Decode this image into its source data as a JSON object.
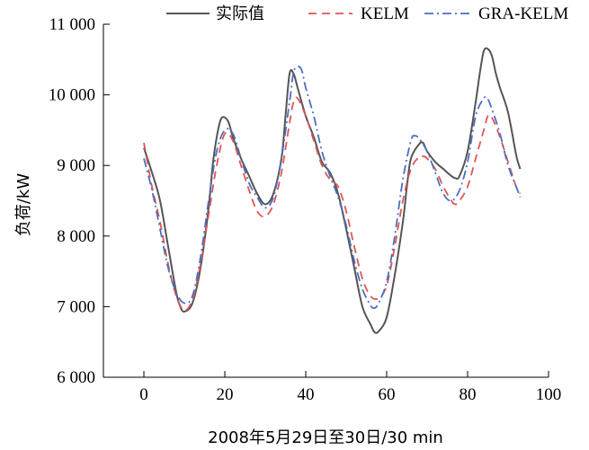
{
  "chart_data": {
    "type": "line",
    "xlabel": "2008年5月29日至30日/30 min",
    "ylabel": "负荷/kW",
    "xlim": [
      -10,
      100
    ],
    "ylim": [
      6000,
      11000
    ],
    "x_ticks": [
      0,
      20,
      40,
      60,
      80,
      100
    ],
    "y_ticks": [
      6000,
      7000,
      8000,
      9000,
      10000,
      11000
    ],
    "x_tick_labels": [
      "0",
      "20",
      "40",
      "60",
      "80",
      "100"
    ],
    "y_tick_labels": [
      "6 000",
      "7 000",
      "8 000",
      "9 000",
      "10 000",
      "11 000"
    ],
    "grid": false,
    "legend_position": "top",
    "series": [
      {
        "name": "实际值",
        "color": "#555555",
        "style": "solid",
        "points": [
          [
            0,
            9250
          ],
          [
            2,
            8900
          ],
          [
            4,
            8500
          ],
          [
            6,
            7850
          ],
          [
            8,
            7200
          ],
          [
            9,
            7000
          ],
          [
            10,
            6930
          ],
          [
            12,
            7050
          ],
          [
            14,
            7550
          ],
          [
            16,
            8400
          ],
          [
            17,
            9000
          ],
          [
            18,
            9400
          ],
          [
            19,
            9650
          ],
          [
            20,
            9680
          ],
          [
            21,
            9600
          ],
          [
            22,
            9400
          ],
          [
            24,
            9100
          ],
          [
            26,
            8850
          ],
          [
            28,
            8600
          ],
          [
            30,
            8450
          ],
          [
            32,
            8600
          ],
          [
            34,
            9100
          ],
          [
            35,
            9700
          ],
          [
            36,
            10300
          ],
          [
            37,
            10300
          ],
          [
            38,
            10100
          ],
          [
            40,
            9700
          ],
          [
            42,
            9400
          ],
          [
            44,
            9050
          ],
          [
            46,
            8900
          ],
          [
            48,
            8600
          ],
          [
            50,
            8100
          ],
          [
            52,
            7550
          ],
          [
            54,
            7000
          ],
          [
            56,
            6750
          ],
          [
            57,
            6640
          ],
          [
            58,
            6650
          ],
          [
            60,
            6850
          ],
          [
            62,
            7450
          ],
          [
            64,
            8200
          ],
          [
            65,
            8700
          ],
          [
            66,
            9100
          ],
          [
            68,
            9300
          ],
          [
            69,
            9320
          ],
          [
            70,
            9200
          ],
          [
            72,
            9050
          ],
          [
            74,
            8950
          ],
          [
            76,
            8850
          ],
          [
            77,
            8820
          ],
          [
            78,
            8850
          ],
          [
            80,
            9200
          ],
          [
            82,
            9900
          ],
          [
            83,
            10300
          ],
          [
            84,
            10620
          ],
          [
            85,
            10650
          ],
          [
            86,
            10550
          ],
          [
            87,
            10300
          ],
          [
            88,
            10100
          ],
          [
            90,
            9750
          ],
          [
            92,
            9150
          ],
          [
            93,
            8950
          ]
        ]
      },
      {
        "name": "KELM",
        "color": "#e05555",
        "style": "dashed",
        "points": [
          [
            0,
            9320
          ],
          [
            2,
            8700
          ],
          [
            4,
            8200
          ],
          [
            6,
            7600
          ],
          [
            8,
            7150
          ],
          [
            10,
            6950
          ],
          [
            12,
            7100
          ],
          [
            14,
            7600
          ],
          [
            16,
            8300
          ],
          [
            18,
            9000
          ],
          [
            20,
            9450
          ],
          [
            22,
            9350
          ],
          [
            24,
            9000
          ],
          [
            26,
            8650
          ],
          [
            28,
            8350
          ],
          [
            30,
            8280
          ],
          [
            32,
            8450
          ],
          [
            34,
            8900
          ],
          [
            36,
            9600
          ],
          [
            37,
            9900
          ],
          [
            38,
            9950
          ],
          [
            40,
            9700
          ],
          [
            42,
            9350
          ],
          [
            44,
            9000
          ],
          [
            46,
            8800
          ],
          [
            48,
            8700
          ],
          [
            50,
            8350
          ],
          [
            52,
            7850
          ],
          [
            54,
            7400
          ],
          [
            56,
            7150
          ],
          [
            58,
            7120
          ],
          [
            60,
            7300
          ],
          [
            62,
            7850
          ],
          [
            64,
            8500
          ],
          [
            66,
            8950
          ],
          [
            68,
            9120
          ],
          [
            69,
            9130
          ],
          [
            70,
            9100
          ],
          [
            72,
            8950
          ],
          [
            74,
            8700
          ],
          [
            76,
            8500
          ],
          [
            77,
            8450
          ],
          [
            78,
            8500
          ],
          [
            80,
            8700
          ],
          [
            82,
            9100
          ],
          [
            84,
            9500
          ],
          [
            85,
            9700
          ],
          [
            86,
            9680
          ],
          [
            88,
            9400
          ],
          [
            90,
            9050
          ],
          [
            92,
            8700
          ],
          [
            93,
            8600
          ]
        ]
      },
      {
        "name": "GRA-KELM",
        "color": "#4a6fc0",
        "style": "dashdot",
        "points": [
          [
            0,
            9100
          ],
          [
            2,
            8650
          ],
          [
            4,
            8100
          ],
          [
            6,
            7550
          ],
          [
            8,
            7200
          ],
          [
            10,
            7050
          ],
          [
            12,
            7150
          ],
          [
            14,
            7700
          ],
          [
            16,
            8500
          ],
          [
            18,
            9200
          ],
          [
            20,
            9500
          ],
          [
            22,
            9450
          ],
          [
            24,
            9100
          ],
          [
            26,
            8750
          ],
          [
            28,
            8550
          ],
          [
            30,
            8400
          ],
          [
            32,
            8550
          ],
          [
            34,
            9100
          ],
          [
            36,
            9900
          ],
          [
            37,
            10320
          ],
          [
            38,
            10400
          ],
          [
            39,
            10350
          ],
          [
            40,
            10100
          ],
          [
            42,
            9700
          ],
          [
            44,
            9200
          ],
          [
            46,
            8850
          ],
          [
            48,
            8550
          ],
          [
            50,
            8150
          ],
          [
            52,
            7650
          ],
          [
            54,
            7250
          ],
          [
            56,
            7020
          ],
          [
            57,
            6980
          ],
          [
            58,
            7050
          ],
          [
            60,
            7350
          ],
          [
            62,
            8000
          ],
          [
            64,
            8800
          ],
          [
            66,
            9350
          ],
          [
            67,
            9420
          ],
          [
            68,
            9380
          ],
          [
            70,
            9200
          ],
          [
            72,
            8900
          ],
          [
            74,
            8600
          ],
          [
            76,
            8500
          ],
          [
            78,
            8650
          ],
          [
            80,
            9050
          ],
          [
            82,
            9700
          ],
          [
            84,
            9950
          ],
          [
            85,
            9940
          ],
          [
            86,
            9800
          ],
          [
            88,
            9450
          ],
          [
            90,
            9000
          ],
          [
            92,
            8700
          ],
          [
            93,
            8550
          ]
        ]
      }
    ]
  }
}
